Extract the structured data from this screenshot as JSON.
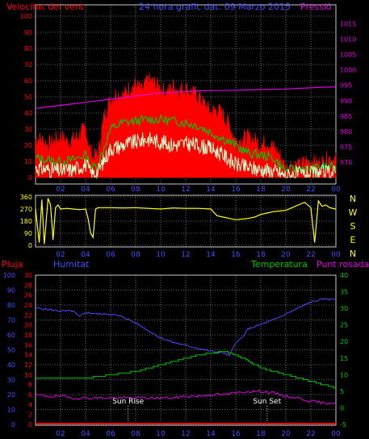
{
  "colors": {
    "red": "#ff0000",
    "green": "#00c800",
    "pale": "#ccffcc",
    "magenta": "#e000e0",
    "blue": "#4a4aff",
    "yellow": "#ffff00",
    "grid": "#c8c8c8",
    "frame": "#c8c8c8"
  },
  "chart_data": [
    {
      "type": "line",
      "id": "wind",
      "title": "24 hora grafic dat. 09 Marzo 2015",
      "left_label": "Velocitat del vent",
      "right_label": "Pressió",
      "x_ticks": [
        "02",
        "04",
        "06",
        "08",
        "10",
        "12",
        "14",
        "16",
        "18",
        "20",
        "22",
        "00"
      ],
      "ylim_left": [
        0,
        100
      ],
      "y_ticks_left": [
        "0",
        "10",
        "20",
        "30",
        "40",
        "50",
        "60",
        "70",
        "80",
        "90",
        "100"
      ],
      "ylim_right": [
        965,
        1017.5
      ],
      "y_ticks_right": [
        "970",
        "975",
        "980",
        "985",
        "990",
        "995",
        "1000",
        "1005",
        "1010",
        "1015"
      ],
      "series": [
        {
          "key": "gust",
          "x": [
            0,
            0.5,
            1,
            1.5,
            2,
            2.5,
            3,
            3.5,
            4,
            4.3,
            4.6,
            5,
            5.5,
            6,
            6.5,
            7,
            7.5,
            8,
            8.5,
            9,
            9.5,
            10,
            10.5,
            11,
            11.5,
            12,
            12.5,
            13,
            13.5,
            14,
            14.5,
            15,
            15.5,
            16,
            16.5,
            17,
            17.5,
            18,
            18.5,
            19,
            19.5,
            20,
            20.5,
            21,
            21.5,
            22,
            22.5,
            23,
            23.5,
            24
          ],
          "values": [
            24,
            23,
            20,
            22,
            25,
            22,
            23,
            26,
            30,
            18,
            12,
            14,
            38,
            48,
            52,
            50,
            55,
            57,
            53,
            60,
            58,
            55,
            52,
            56,
            54,
            55,
            52,
            50,
            45,
            40,
            42,
            38,
            32,
            22,
            24,
            24,
            23,
            20,
            22,
            18,
            14,
            5,
            8,
            6,
            9,
            10,
            8,
            9,
            12,
            10
          ]
        },
        {
          "key": "mean",
          "x": [
            0,
            1,
            2,
            3,
            4,
            4.5,
            5,
            6,
            7,
            8,
            9,
            10,
            11,
            12,
            13,
            14,
            15,
            16,
            17,
            18,
            19,
            20,
            21,
            22,
            23,
            24
          ],
          "values": [
            12,
            11,
            10,
            11,
            14,
            6,
            8,
            30,
            34,
            35,
            36,
            36,
            35,
            34,
            32,
            28,
            24,
            20,
            15,
            14,
            12,
            4,
            6,
            5,
            7,
            6
          ]
        },
        {
          "key": "min",
          "x": [
            0,
            1,
            2,
            3,
            4,
            4.5,
            5,
            6,
            7,
            8,
            9,
            10,
            11,
            12,
            13,
            14,
            15,
            16,
            17,
            18,
            19,
            20,
            21,
            22,
            23,
            24
          ],
          "values": [
            6,
            5,
            4,
            5,
            8,
            2,
            4,
            18,
            20,
            22,
            24,
            22,
            20,
            21,
            20,
            18,
            14,
            8,
            6,
            5,
            4,
            1,
            2,
            2,
            3,
            3
          ]
        },
        {
          "key": "pressure",
          "axis": "right",
          "x": [
            0,
            1,
            2,
            3,
            4,
            5,
            6,
            7,
            8,
            9,
            10,
            11,
            12,
            13,
            14,
            15,
            16,
            17,
            18,
            19,
            20,
            21,
            22,
            23,
            24
          ],
          "values": [
            987.5,
            988,
            988.5,
            989,
            989.5,
            990,
            990.5,
            991,
            991.5,
            992,
            992.5,
            992.8,
            993,
            993.2,
            993.3,
            993.3,
            993.4,
            993.5,
            993.6,
            993.7,
            993.8,
            994,
            994.2,
            994.4,
            994.5
          ]
        }
      ]
    },
    {
      "type": "line",
      "id": "direction",
      "right_labels": [
        "N",
        "W",
        "S",
        "E",
        "N"
      ],
      "ylim": [
        0,
        360
      ],
      "y_ticks": [
        "0",
        "90",
        "180",
        "270",
        "360"
      ],
      "x_ticks": [
        "02",
        "04",
        "06",
        "08",
        "10",
        "12",
        "14",
        "16",
        "18",
        "20",
        "22",
        "00"
      ],
      "series": [
        {
          "key": "direction",
          "x": [
            0,
            0.3,
            0.5,
            0.7,
            1,
            1.2,
            1.4,
            1.6,
            1.8,
            2,
            2.5,
            3,
            3.5,
            4,
            4.2,
            4.4,
            4.6,
            4.8,
            5,
            6,
            7,
            8,
            9,
            10,
            11,
            12,
            13,
            14,
            14.5,
            15,
            15.5,
            16,
            16.5,
            17,
            17.5,
            18,
            18.5,
            19,
            19.5,
            20,
            20.5,
            21,
            21.5,
            22,
            22.3,
            22.6,
            22.9,
            23.2,
            23.5,
            24
          ],
          "values": [
            270,
            20,
            340,
            10,
            350,
            300,
            40,
            280,
            300,
            270,
            275,
            270,
            265,
            270,
            200,
            90,
            60,
            270,
            280,
            280,
            278,
            280,
            275,
            270,
            278,
            275,
            275,
            270,
            220,
            210,
            200,
            190,
            195,
            200,
            210,
            230,
            240,
            250,
            255,
            260,
            280,
            300,
            320,
            280,
            20,
            330,
            290,
            300,
            280,
            270
          ]
        }
      ]
    },
    {
      "type": "line",
      "id": "climate",
      "labels": {
        "rain": "Pluja",
        "humidity": "Humitat",
        "temperature": "Temperatura",
        "dewpoint": "Punt rosada"
      },
      "x_ticks": [
        "02",
        "04",
        "06",
        "08",
        "10",
        "12",
        "14",
        "16",
        "18",
        "20",
        "22",
        "00"
      ],
      "y_ticks_rain": [
        "0",
        "2",
        "4",
        "6",
        "8",
        "10",
        "12",
        "14",
        "16",
        "18",
        "20",
        "22",
        "24",
        "26",
        "28",
        "30"
      ],
      "y_ticks_hum": [
        "0",
        "10",
        "20",
        "30",
        "40",
        "50",
        "60",
        "70",
        "80",
        "90",
        "100"
      ],
      "y_ticks_temp": [
        "-5",
        "0",
        "5",
        "10",
        "15",
        "20",
        "25",
        "30",
        "35",
        "40"
      ],
      "ylim_hum": [
        0,
        100
      ],
      "ylim_temp": [
        -5,
        40
      ],
      "annotations": [
        {
          "label": "Sun Rise",
          "x": 7.4
        },
        {
          "label": "Sun Set",
          "x": 18.5
        }
      ],
      "series": [
        {
          "key": "humidity",
          "x": [
            0,
            1,
            2,
            3,
            3.5,
            4,
            5,
            6,
            7,
            8,
            9,
            10,
            11,
            12,
            13,
            14,
            15,
            15.5,
            16,
            16.5,
            17,
            18,
            19,
            20,
            21,
            22,
            23,
            24
          ],
          "values": [
            78,
            77,
            76,
            76,
            72,
            75,
            74,
            74,
            72,
            68,
            63,
            58,
            55,
            53,
            51,
            49,
            48,
            46,
            55,
            58,
            64,
            67,
            70,
            74,
            78,
            82,
            84,
            84
          ]
        },
        {
          "key": "temperature",
          "axis": "temp",
          "x": [
            0,
            1,
            2,
            3,
            4,
            5,
            6,
            7,
            8,
            9,
            10,
            11,
            12,
            13,
            14,
            15,
            16,
            17,
            18,
            19,
            20,
            21,
            22,
            23,
            24
          ],
          "values": [
            9,
            9,
            9,
            9,
            9,
            9.5,
            10,
            10.5,
            11,
            12,
            13,
            14,
            15,
            16,
            16.5,
            17,
            16,
            14,
            12,
            11,
            10,
            9,
            8,
            7,
            6
          ]
        },
        {
          "key": "dewpoint",
          "axis": "temp",
          "x": [
            0,
            1,
            2,
            3,
            4,
            5,
            6,
            7,
            8,
            9,
            10,
            11,
            12,
            13,
            14,
            15,
            16,
            17,
            18,
            19,
            20,
            21,
            22,
            23,
            24
          ],
          "values": [
            4,
            3.5,
            3.5,
            3,
            3,
            3,
            3,
            3,
            3,
            3,
            3,
            3,
            3.5,
            3.5,
            4,
            4,
            4.5,
            5,
            5,
            4.5,
            3.5,
            3,
            2,
            1.5,
            1.5
          ]
        },
        {
          "key": "rain",
          "axis": "rain",
          "x": [
            0,
            24
          ],
          "values": [
            0,
            0
          ]
        }
      ]
    }
  ]
}
